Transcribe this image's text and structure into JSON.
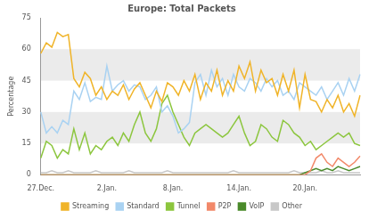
{
  "chart_data": {
    "type": "line",
    "title": "Europe: Total Packets",
    "y_label": "Percentage",
    "categories": [
      "27.Dec.",
      null,
      null,
      null,
      null,
      null,
      null,
      null,
      null,
      null,
      null,
      null,
      "2.Jan.",
      null,
      null,
      null,
      null,
      null,
      null,
      null,
      null,
      null,
      null,
      null,
      "8.Jan.",
      null,
      null,
      null,
      null,
      null,
      null,
      null,
      null,
      null,
      null,
      null,
      "14.Jan.",
      null,
      null,
      null,
      null,
      null,
      null,
      null,
      null,
      null,
      null,
      null,
      "20.Jan.",
      null,
      null,
      null,
      null,
      null,
      null,
      null,
      null,
      null,
      null
    ],
    "series": [
      {
        "name": "Streaming",
        "color": "#f0b429",
        "values": [
          58,
          63,
          61,
          68,
          66,
          67,
          46,
          42,
          49,
          46,
          38,
          42,
          36,
          40,
          38,
          43,
          36,
          41,
          44,
          38,
          32,
          40,
          35,
          44,
          42,
          38,
          45,
          40,
          48,
          36,
          44,
          40,
          50,
          38,
          45,
          40,
          52,
          46,
          54,
          40,
          50,
          44,
          46,
          38,
          48,
          40,
          50,
          32,
          48,
          36,
          35,
          30,
          36,
          32,
          38,
          30,
          34,
          28,
          38
        ]
      },
      {
        "name": "Standard",
        "color": "#a9d2f2",
        "values": [
          30,
          20,
          23,
          20,
          26,
          24,
          40,
          36,
          44,
          35,
          37,
          36,
          52,
          40,
          43,
          45,
          40,
          43,
          42,
          36,
          38,
          42,
          30,
          33,
          28,
          20,
          22,
          25,
          44,
          48,
          38,
          50,
          42,
          46,
          38,
          48,
          42,
          40,
          46,
          44,
          40,
          46,
          42,
          45,
          38,
          40,
          36,
          44,
          42,
          40,
          38,
          42,
          36,
          40,
          44,
          38,
          46,
          40,
          48
        ]
      },
      {
        "name": "Tunnel",
        "color": "#8cc63e",
        "values": [
          8,
          16,
          14,
          8,
          12,
          10,
          22,
          12,
          20,
          10,
          14,
          12,
          16,
          18,
          14,
          20,
          16,
          24,
          30,
          20,
          16,
          22,
          34,
          38,
          30,
          24,
          18,
          14,
          20,
          22,
          24,
          22,
          20,
          18,
          20,
          24,
          28,
          20,
          14,
          16,
          24,
          22,
          18,
          16,
          26,
          24,
          20,
          18,
          14,
          16,
          12,
          14,
          16,
          18,
          20,
          18,
          20,
          15,
          14
        ]
      },
      {
        "name": "P2P",
        "color": "#f2896a",
        "values": [
          0,
          0,
          0,
          0,
          0,
          0,
          0,
          0,
          0,
          0,
          0,
          0,
          0,
          0,
          0,
          0,
          0,
          0,
          0,
          0,
          0,
          0,
          0,
          0,
          0,
          0,
          0,
          0,
          0,
          0,
          0,
          0,
          0,
          0,
          0,
          0,
          0,
          0,
          0,
          0,
          0,
          0,
          0,
          0,
          0,
          0,
          0,
          0,
          0,
          2,
          8,
          10,
          6,
          4,
          8,
          6,
          4,
          6,
          9
        ]
      },
      {
        "name": "VoIP",
        "color": "#4a8a2a",
        "values": [
          0,
          0,
          0,
          0,
          0,
          0,
          0,
          0,
          0,
          0,
          0,
          0,
          0,
          0,
          0,
          0,
          0,
          0,
          0,
          0,
          0,
          0,
          0,
          0,
          0,
          0,
          0,
          0,
          0,
          0,
          0,
          0,
          0,
          0,
          0,
          0,
          0,
          0,
          0,
          0,
          0,
          0,
          0,
          0,
          0,
          0,
          0,
          0,
          1,
          2,
          3,
          2,
          3,
          2,
          4,
          3,
          2,
          3,
          4
        ]
      },
      {
        "name": "Other",
        "color": "#c8c8c8",
        "values": [
          1,
          1,
          2,
          1,
          1,
          2,
          1,
          1,
          1,
          1,
          2,
          1,
          1,
          1,
          1,
          1,
          2,
          1,
          1,
          1,
          1,
          1,
          1,
          2,
          1,
          1,
          1,
          1,
          1,
          1,
          1,
          1,
          1,
          1,
          1,
          2,
          1,
          1,
          1,
          1,
          1,
          1,
          1,
          1,
          1,
          1,
          2,
          1,
          1,
          1,
          1,
          2,
          1,
          1,
          2,
          1,
          1,
          1,
          1
        ]
      }
    ],
    "ylim": [
      0,
      75
    ],
    "yticks": [
      0,
      15,
      30,
      45,
      60,
      75
    ],
    "grid": true,
    "legend": "bottom"
  }
}
